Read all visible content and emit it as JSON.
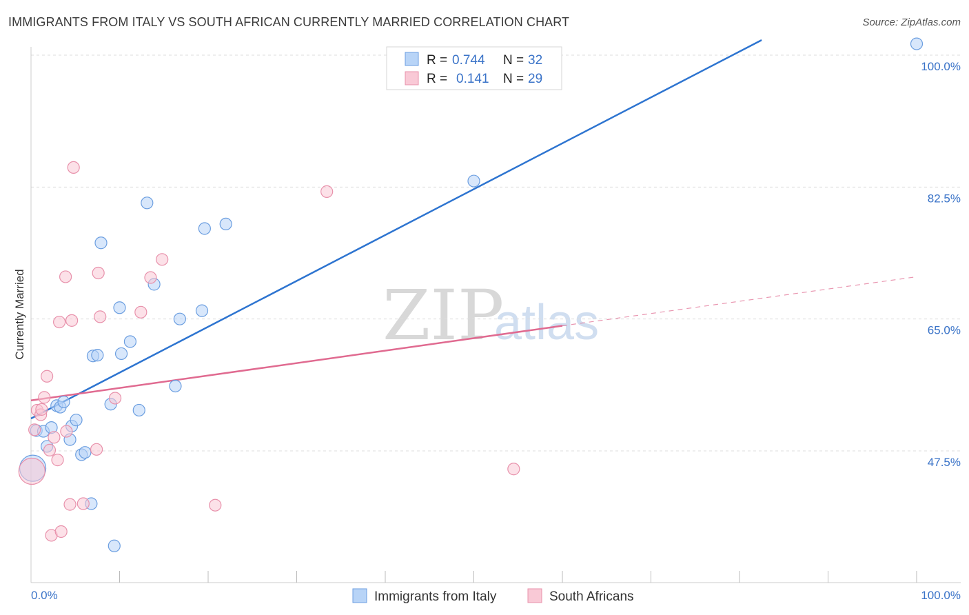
{
  "header": {
    "title": "IMMIGRANTS FROM ITALY VS SOUTH AFRICAN CURRENTLY MARRIED CORRELATION CHART",
    "source": "Source: ZipAtlas.com"
  },
  "watermark": {
    "zip": "ZIP",
    "atlas": "atlas"
  },
  "colors": {
    "blue_fill": "#b8d4f7",
    "blue_stroke": "#6b9ee0",
    "blue_line": "#2d74d0",
    "pink_fill": "#f9c9d6",
    "pink_stroke": "#e891ab",
    "pink_line": "#e06a90",
    "grid": "#dcdcdc",
    "axis_text": "#3a73c8"
  },
  "legend": {
    "rows": [
      {
        "r_label": "R =",
        "r_value": "0.744",
        "n_label": "N =",
        "n_value": "32"
      },
      {
        "r_label": "R =",
        "r_value": "0.141",
        "n_label": "N =",
        "n_value": "29"
      }
    ]
  },
  "chart_data": {
    "type": "scatter",
    "title": "IMMIGRANTS FROM ITALY VS SOUTH AFRICAN CURRENTLY MARRIED CORRELATION CHART",
    "xlabel": "",
    "ylabel": "Currently Married",
    "xlim": [
      0,
      100
    ],
    "ylim": [
      32.5,
      102
    ],
    "x_tick_labels": [
      "0.0%",
      "100.0%"
    ],
    "y_ticks": [
      47.5,
      65.0,
      82.5,
      100.0
    ],
    "y_tick_labels": [
      "47.5%",
      "65.0%",
      "82.5%",
      "100.0%"
    ],
    "grid": true,
    "legend_position": "top-center",
    "series": [
      {
        "name": "Immigrants from Italy",
        "color": "blue",
        "R": 0.744,
        "N": 32,
        "trend": {
          "x": [
            0,
            82.5
          ],
          "y": [
            51.8,
            102.0
          ]
        },
        "points": [
          {
            "x": 0.2,
            "y": 45.2,
            "big": true
          },
          {
            "x": 0.6,
            "y": 50.2
          },
          {
            "x": 1.4,
            "y": 50.1
          },
          {
            "x": 1.8,
            "y": 48.1
          },
          {
            "x": 2.3,
            "y": 50.6
          },
          {
            "x": 2.9,
            "y": 53.5
          },
          {
            "x": 3.3,
            "y": 53.3
          },
          {
            "x": 3.7,
            "y": 54.0
          },
          {
            "x": 4.4,
            "y": 49.0
          },
          {
            "x": 4.6,
            "y": 50.8
          },
          {
            "x": 5.1,
            "y": 51.6
          },
          {
            "x": 5.7,
            "y": 47.0
          },
          {
            "x": 6.1,
            "y": 47.3
          },
          {
            "x": 6.8,
            "y": 40.5
          },
          {
            "x": 7.0,
            "y": 60.1
          },
          {
            "x": 7.5,
            "y": 60.2
          },
          {
            "x": 7.9,
            "y": 75.1
          },
          {
            "x": 9.0,
            "y": 53.7
          },
          {
            "x": 9.4,
            "y": 34.9
          },
          {
            "x": 10.0,
            "y": 66.5
          },
          {
            "x": 10.2,
            "y": 60.4
          },
          {
            "x": 11.2,
            "y": 62.0
          },
          {
            "x": 12.2,
            "y": 52.9
          },
          {
            "x": 13.1,
            "y": 80.4
          },
          {
            "x": 13.9,
            "y": 69.6
          },
          {
            "x": 16.3,
            "y": 56.1
          },
          {
            "x": 16.8,
            "y": 65.0
          },
          {
            "x": 19.3,
            "y": 66.1
          },
          {
            "x": 19.6,
            "y": 77.0
          },
          {
            "x": 22.0,
            "y": 77.6
          },
          {
            "x": 50.0,
            "y": 83.3
          },
          {
            "x": 100.0,
            "y": 101.5
          }
        ]
      },
      {
        "name": "South Africans",
        "color": "pink",
        "R": 0.141,
        "N": 29,
        "trend": {
          "x": [
            0,
            60
          ],
          "y": [
            54.2,
            64.1
          ]
        },
        "trend_dashed": {
          "x": [
            60,
            100
          ],
          "y": [
            64.1,
            70.6
          ]
        },
        "points": [
          {
            "x": 0.1,
            "y": 44.8,
            "big": true
          },
          {
            "x": 0.4,
            "y": 50.3
          },
          {
            "x": 0.7,
            "y": 52.9
          },
          {
            "x": 1.1,
            "y": 52.3
          },
          {
            "x": 1.2,
            "y": 53.0
          },
          {
            "x": 1.5,
            "y": 54.6
          },
          {
            "x": 1.8,
            "y": 57.4
          },
          {
            "x": 2.1,
            "y": 47.6
          },
          {
            "x": 2.3,
            "y": 36.3
          },
          {
            "x": 2.6,
            "y": 49.3
          },
          {
            "x": 3.0,
            "y": 46.3
          },
          {
            "x": 3.2,
            "y": 64.6
          },
          {
            "x": 3.4,
            "y": 36.8
          },
          {
            "x": 3.9,
            "y": 70.6
          },
          {
            "x": 4.0,
            "y": 50.1
          },
          {
            "x": 4.4,
            "y": 40.4
          },
          {
            "x": 4.6,
            "y": 64.8
          },
          {
            "x": 4.8,
            "y": 85.1
          },
          {
            "x": 5.9,
            "y": 40.5
          },
          {
            "x": 7.4,
            "y": 47.7
          },
          {
            "x": 7.6,
            "y": 71.1
          },
          {
            "x": 7.8,
            "y": 65.3
          },
          {
            "x": 9.5,
            "y": 54.5
          },
          {
            "x": 12.4,
            "y": 65.9
          },
          {
            "x": 13.5,
            "y": 70.5
          },
          {
            "x": 14.8,
            "y": 72.9
          },
          {
            "x": 20.8,
            "y": 40.3
          },
          {
            "x": 33.4,
            "y": 81.9
          },
          {
            "x": 54.5,
            "y": 45.1
          }
        ]
      }
    ]
  }
}
